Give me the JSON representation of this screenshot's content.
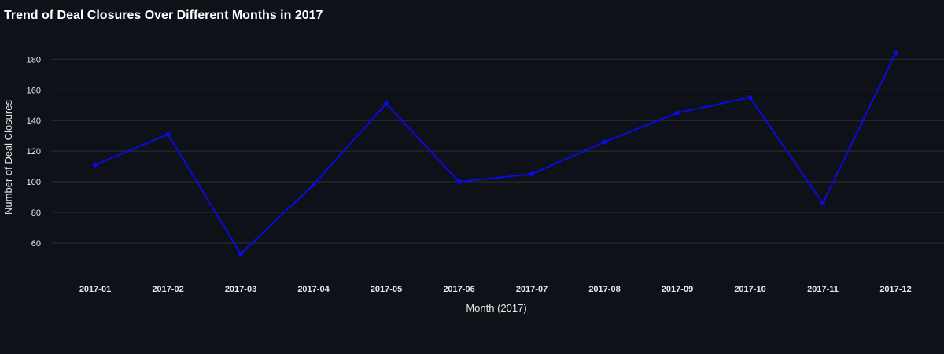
{
  "chart_data": {
    "type": "line",
    "title": "Trend of Deal Closures Over Different Months in 2017",
    "xlabel": "Month (2017)",
    "ylabel": "Number of Deal Closures",
    "categories": [
      "2017-01",
      "2017-02",
      "2017-03",
      "2017-04",
      "2017-05",
      "2017-06",
      "2017-07",
      "2017-08",
      "2017-09",
      "2017-10",
      "2017-11",
      "2017-12"
    ],
    "series": [
      {
        "values": [
          111,
          131,
          53,
          98,
          151,
          100,
          105,
          126,
          145,
          155,
          86,
          184
        ]
      }
    ],
    "yticks": [
      60,
      80,
      100,
      120,
      140,
      160,
      180
    ],
    "ylim": [
      44,
      192
    ],
    "grid": true,
    "legend": "none",
    "colors": {
      "background": "#0e1117",
      "line": "#0a0ae6",
      "grid": "#2b2f3a",
      "text": "#e8e8e8",
      "title": "#ffffff"
    }
  }
}
